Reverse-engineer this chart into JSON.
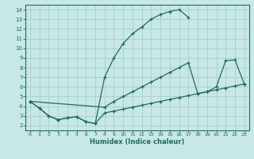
{
  "background_color": "#c8e8e5",
  "grid_color": "#a8ceca",
  "line_color": "#1e6b65",
  "xlabel": "Humidex (Indice chaleur)",
  "xlim": [
    -0.5,
    23.5
  ],
  "ylim": [
    1.5,
    14.5
  ],
  "xticks": [
    0,
    1,
    2,
    3,
    4,
    5,
    6,
    7,
    8,
    9,
    10,
    11,
    12,
    13,
    14,
    15,
    16,
    17,
    18,
    19,
    20,
    21,
    22,
    23
  ],
  "yticks": [
    2,
    3,
    4,
    5,
    6,
    7,
    8,
    9,
    10,
    11,
    12,
    13,
    14
  ],
  "curve1_x": [
    0,
    1,
    2,
    3,
    4,
    5,
    6,
    7,
    8,
    9,
    10,
    11,
    12,
    13,
    14,
    15,
    16,
    17
  ],
  "curve1_y": [
    4.5,
    3.8,
    3.0,
    2.6,
    2.8,
    2.9,
    2.4,
    2.2,
    7.0,
    9.0,
    10.5,
    11.5,
    12.2,
    13.0,
    13.5,
    13.8,
    14.0,
    13.2
  ],
  "curve2_x": [
    0,
    8,
    9,
    10,
    11,
    12,
    13,
    14,
    15,
    16,
    17,
    18,
    19,
    20,
    21,
    22,
    23
  ],
  "curve2_y": [
    4.5,
    3.9,
    4.5,
    5.0,
    5.5,
    6.0,
    6.5,
    7.0,
    7.5,
    8.0,
    8.5,
    5.3,
    5.5,
    6.0,
    8.7,
    8.8,
    6.3
  ],
  "curve3_x": [
    0,
    1,
    2,
    3,
    4,
    5,
    6,
    7,
    8,
    9,
    10,
    11,
    12,
    13,
    14,
    15,
    16,
    17,
    18,
    19,
    20,
    21,
    22,
    23
  ],
  "curve3_y": [
    4.5,
    3.8,
    3.0,
    2.6,
    2.8,
    2.9,
    2.4,
    2.2,
    3.3,
    3.5,
    3.7,
    3.9,
    4.1,
    4.3,
    4.5,
    4.7,
    4.9,
    5.1,
    5.3,
    5.5,
    5.7,
    5.9,
    6.1,
    6.3
  ]
}
